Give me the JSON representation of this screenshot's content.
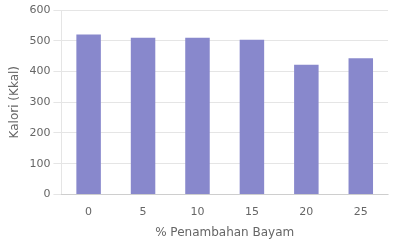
{
  "chart_data": {
    "type": "bar",
    "categories": [
      "0",
      "5",
      "10",
      "15",
      "20",
      "25"
    ],
    "values": [
      520,
      510,
      510,
      503,
      422,
      443
    ],
    "color": "#8888cc",
    "xlabel": "% Penambahan Bayam",
    "ylabel": "Kalori (Kkal)",
    "ylim": [
      0,
      600
    ],
    "yticks": [
      0,
      100,
      200,
      300,
      400,
      500,
      600
    ],
    "grid": true
  }
}
